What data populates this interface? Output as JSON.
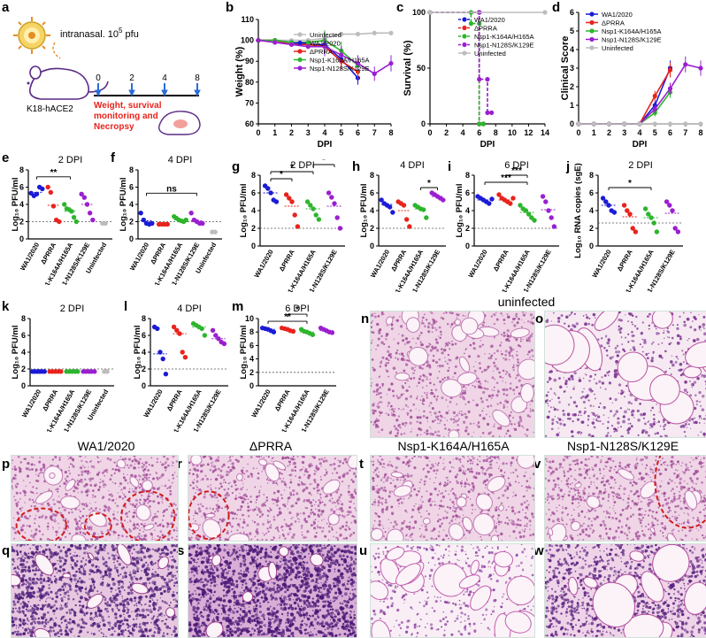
{
  "panel_a": {
    "label": "a",
    "route": "intranasal. 10",
    "route_exp": "5",
    "route_unit": " pfu",
    "mouse": "K18-hACE2",
    "timeline": [
      "0",
      "2",
      "4",
      "8"
    ],
    "monitor": "Weight, survival monitoring and Necropsy"
  },
  "legend_names": [
    "WA1/2020",
    "ΔPRRA",
    "Nsp1-K164A/H165A",
    "Nsp1-N128S/K129E",
    "Uninfected"
  ],
  "colors": {
    "WA1/2020": "#1b1bd6",
    "ΔPRRA": "#e8231c",
    "Nsp1-K164A/H165A": "#2db52d",
    "Nsp1-N128S/K129E": "#9a1fcf",
    "Uninfected": "#bdbdbd"
  },
  "chart_data": [
    {
      "id": "b",
      "type": "line",
      "xlabel": "DPI",
      "ylabel": "Weight (%)",
      "xlim": [
        0,
        8
      ],
      "ylim": [
        60,
        110
      ],
      "xticks": [
        "0",
        "1",
        "2",
        "3",
        "4",
        "5",
        "6",
        "7",
        "8"
      ],
      "yticks": [
        "60",
        "70",
        "80",
        "90",
        "100",
        "110"
      ],
      "legend": [
        "Uninfected",
        "WA1/2020",
        "ΔPRRA",
        "Nsp1-K164A/H165A",
        "Nsp1-N128S/K129E"
      ],
      "series": [
        {
          "name": "Uninfected",
          "x": [
            0,
            1,
            2,
            3,
            4,
            5,
            6,
            7,
            8
          ],
          "y": [
            100,
            100,
            100,
            100,
            101,
            103,
            103,
            103.5,
            103.5
          ]
        },
        {
          "name": "WA1/2020",
          "x": [
            0,
            1,
            2,
            3,
            4,
            5,
            6
          ],
          "y": [
            100,
            100,
            99,
            98,
            98,
            91,
            82
          ]
        },
        {
          "name": "ΔPRRA",
          "x": [
            0,
            1,
            2,
            3,
            4,
            5,
            6
          ],
          "y": [
            100,
            100,
            98,
            98,
            97,
            90,
            85
          ]
        },
        {
          "name": "Nsp1-K164A/H165A",
          "x": [
            0,
            1,
            2,
            3,
            4,
            5,
            6
          ],
          "y": [
            100,
            100,
            99,
            99,
            100,
            95,
            88
          ]
        },
        {
          "name": "Nsp1-N128S/K129E",
          "x": [
            0,
            1,
            2,
            3,
            4,
            5,
            6,
            7,
            8
          ],
          "y": [
            100,
            99,
            98,
            97,
            97,
            93,
            89,
            84,
            89
          ]
        }
      ]
    },
    {
      "id": "c",
      "type": "line",
      "xlabel": "DPI",
      "ylabel": "Survival (%)",
      "xlim": [
        0,
        14
      ],
      "ylim": [
        0,
        100
      ],
      "xticks": [
        "0",
        "2",
        "4",
        "6",
        "8",
        "10",
        "12",
        "14"
      ],
      "yticks": [
        "0",
        "50",
        "100"
      ],
      "legend": [
        "WA1/2020",
        "ΔPRRA",
        "Nsp1-K164A/H165A",
        "Nsp1-N128S/K129E",
        "Uninfected"
      ],
      "series": [
        {
          "name": "WA1/2020",
          "x": [
            0,
            6,
            6,
            6.5
          ],
          "y": [
            100,
            100,
            0,
            0
          ]
        },
        {
          "name": "ΔPRRA",
          "x": [
            0,
            6,
            6,
            6.5
          ],
          "y": [
            100,
            100,
            0,
            0
          ]
        },
        {
          "name": "Nsp1-K164A/H165A",
          "x": [
            0,
            5,
            5,
            6,
            6,
            6.5
          ],
          "y": [
            100,
            100,
            90,
            90,
            0,
            0
          ]
        },
        {
          "name": "Nsp1-N128S/K129E",
          "x": [
            0,
            6,
            6,
            7,
            7,
            7.5
          ],
          "y": [
            100,
            100,
            40,
            40,
            10,
            10
          ]
        },
        {
          "name": "Uninfected",
          "x": [
            0,
            14
          ],
          "y": [
            100,
            100
          ]
        }
      ]
    },
    {
      "id": "d",
      "type": "line",
      "xlabel": "DPI",
      "ylabel": "Clinical Score",
      "xlim": [
        0,
        8
      ],
      "ylim": [
        0,
        6
      ],
      "xticks": [
        "0",
        "1",
        "2",
        "3",
        "4",
        "5",
        "6",
        "7",
        "8"
      ],
      "yticks": [
        "0",
        "1",
        "2",
        "3",
        "4",
        "5",
        "6"
      ],
      "legend": [
        "WA1/2020",
        "ΔPRRA",
        "Nsp1-K164A/H165A",
        "Nsp1-N128S/K129E",
        "Uninfected"
      ],
      "series": [
        {
          "name": "WA1/2020",
          "x": [
            0,
            1,
            2,
            3,
            4,
            5,
            6
          ],
          "y": [
            0,
            0,
            0,
            0,
            0,
            1,
            3
          ]
        },
        {
          "name": "ΔPRRA",
          "x": [
            0,
            1,
            2,
            3,
            4,
            5,
            6
          ],
          "y": [
            0,
            0,
            0,
            0,
            0,
            1.5,
            2.9
          ]
        },
        {
          "name": "Nsp1-K164A/H165A",
          "x": [
            0,
            1,
            2,
            3,
            4,
            5,
            6
          ],
          "y": [
            0,
            0,
            0,
            0,
            0,
            0.6,
            1.7
          ]
        },
        {
          "name": "Nsp1-N128S/K129E",
          "x": [
            0,
            1,
            2,
            3,
            4,
            5,
            6,
            7,
            8
          ],
          "y": [
            0,
            0,
            0,
            0,
            0,
            0.8,
            1.9,
            3.2,
            3
          ]
        },
        {
          "name": "Uninfected",
          "x": [
            0,
            1,
            2,
            3,
            4,
            5,
            6,
            7,
            8
          ],
          "y": [
            0,
            0,
            0,
            0,
            0,
            0,
            0,
            0,
            0
          ]
        }
      ]
    },
    {
      "id": "e",
      "type": "scatter",
      "title": "2 DPI",
      "ylabel": "Log₁₀ PFU/ml",
      "ylim": [
        0,
        8
      ],
      "yticks": [
        "0",
        "2",
        "4",
        "6",
        "8"
      ],
      "categories": [
        "WA1/2020",
        "ΔPRRA",
        "Nsp1-K164A/H165A",
        "Nsp1-N128S/K129E",
        "Uninfected"
      ],
      "points": [
        [
          5.3,
          5.0,
          5.2,
          6.0,
          5.8
        ],
        [
          6.0,
          5.4,
          3.8,
          2.2,
          2.0
        ],
        [
          4.0,
          3.5,
          3.4,
          3.2,
          2.5,
          2.0
        ],
        [
          5.2,
          4.8,
          4.0,
          3.0,
          2.2
        ],
        [
          1.8,
          1.8
        ]
      ],
      "means": [
        5.4,
        3.9,
        3.2,
        4.0,
        null
      ],
      "lod": 2,
      "sig": [
        {
          "from": 0,
          "to": 2,
          "text": "**"
        }
      ]
    },
    {
      "id": "f",
      "type": "scatter",
      "title": "4 DPI",
      "ylabel": "Log₁₀ PFU/ml",
      "ylim": [
        0,
        8
      ],
      "yticks": [
        "0",
        "2",
        "4",
        "6",
        "8"
      ],
      "categories": [
        "WA1/2020",
        "ΔPRRA",
        "Nsp1-K164A/H165A",
        "Nsp1-N128S/K129E",
        "Uninfected"
      ],
      "points": [
        [
          3.0,
          2.2,
          1.8,
          1.7,
          1.8
        ],
        [
          1.7,
          1.7,
          1.7,
          1.7
        ],
        [
          2.6,
          2.4,
          2.2,
          2.1,
          2.0,
          2.2
        ],
        [
          3.0,
          2.2,
          2.0,
          1.8,
          1.8
        ],
        [
          0.8,
          0.8
        ]
      ],
      "means": [
        2.1,
        1.7,
        2.2,
        2.1,
        null
      ],
      "lod": 2,
      "sig": [
        {
          "from": 0,
          "to": 3,
          "text": "ns"
        }
      ]
    },
    {
      "id": "g",
      "type": "scatter",
      "title": "2 DPI",
      "ylabel": "Log₁₀ PFU/ml",
      "ylim": [
        0,
        8
      ],
      "yticks": [
        "0",
        "2",
        "4",
        "6",
        "8"
      ],
      "categories": [
        "WA1/2020",
        "ΔPRRA",
        "Nsp1-K164A/H165A",
        "Nsp1-N128S/K129E"
      ],
      "points": [
        [
          6.8,
          6.5,
          6.0,
          5.2,
          5.0
        ],
        [
          5.8,
          5.4,
          5.0,
          3.5,
          2.2
        ],
        [
          5.0,
          4.6,
          4.2,
          3.5,
          3.0
        ],
        [
          6.0,
          5.5,
          4.8,
          3.2,
          2.0
        ]
      ],
      "means": [
        6.0,
        4.5,
        4.2,
        4.5
      ],
      "lod": 2,
      "sig": [
        {
          "from": 0,
          "to": 1,
          "text": "*"
        },
        {
          "from": 0,
          "to": 2,
          "text": "*"
        },
        {
          "from": 2,
          "to": 3,
          "text": "*"
        }
      ]
    },
    {
      "id": "h",
      "type": "scatter",
      "title": "4 DPI",
      "ylabel": "Log₁₀ PFU/ml",
      "ylim": [
        0,
        8
      ],
      "yticks": [
        "0",
        "2",
        "4",
        "6",
        "8"
      ],
      "categories": [
        "WA1/2020",
        "ΔPRRA",
        "Nsp1-K164A/H165A",
        "Nsp1-N128S/K129E"
      ],
      "points": [
        [
          5.2,
          4.8,
          4.6,
          4.4,
          3.8
        ],
        [
          5.0,
          4.8,
          4.6,
          3.0,
          2.2
        ],
        [
          4.6,
          4.4,
          4.2,
          4.1,
          3.2
        ],
        [
          6.0,
          5.8,
          5.6,
          5.4,
          5.2
        ]
      ],
      "means": [
        4.7,
        4.0,
        4.2,
        5.6
      ],
      "lod": 2,
      "sig": [
        {
          "from": 2,
          "to": 3,
          "text": "*"
        }
      ]
    },
    {
      "id": "i",
      "type": "scatter",
      "title": "6 DPI",
      "ylabel": "Log₁₀ PFU/ml",
      "ylim": [
        0,
        8
      ],
      "yticks": [
        "0",
        "2",
        "4",
        "6",
        "8"
      ],
      "categories": [
        "WA1/2020",
        "ΔPRRA",
        "Nsp1-K164A/H165A",
        "Nsp1-N128S/K129E"
      ],
      "points": [
        [
          5.6,
          5.4,
          5.2,
          5.0,
          4.8,
          5.3
        ],
        [
          5.8,
          5.4,
          5.2,
          5.0,
          4.8,
          5.4
        ],
        [
          4.6,
          4.2,
          4.0,
          3.6,
          3.2,
          2.9
        ],
        [
          5.6,
          5.0,
          4.0,
          3.2,
          2.2
        ]
      ],
      "means": [
        5.2,
        5.2,
        3.8,
        4.1
      ],
      "lod": 2,
      "sig": [
        {
          "from": 0,
          "to": 2,
          "text": "***"
        },
        {
          "from": 1,
          "to": 2,
          "text": "***"
        }
      ]
    },
    {
      "id": "j",
      "type": "scatter",
      "title": "2 DPI",
      "ylabel": "Log₁₀ RNA copies (sgE)",
      "ylim": [
        0,
        8
      ],
      "yticks": [
        "0",
        "2",
        "4",
        "6",
        "8"
      ],
      "categories": [
        "WA1/2020",
        "ΔPRRA",
        "Nsp1-K164A/H165A",
        "Nsp1-N128S/K129E"
      ],
      "points": [
        [
          5.4,
          5.0,
          4.6,
          4.0,
          3.8
        ],
        [
          4.6,
          4.0,
          3.6,
          2.0,
          1.6
        ],
        [
          4.2,
          3.6,
          3.2,
          2.6,
          1.6
        ],
        [
          5.0,
          4.6,
          4.0,
          2.0,
          1.6
        ]
      ],
      "means": [
        4.6,
        3.3,
        3.2,
        3.7
      ],
      "lod": 2.6,
      "sig": [
        {
          "from": 0,
          "to": 2,
          "text": "*"
        }
      ]
    },
    {
      "id": "k",
      "type": "scatter",
      "title": "2 DPI",
      "ylabel": "Log₁₀ PFU/ml",
      "ylim": [
        0,
        8
      ],
      "yticks": [
        "0",
        "2",
        "4",
        "6",
        "8"
      ],
      "categories": [
        "WA1/2020",
        "ΔPRRA",
        "Nsp1-K164A/H165A",
        "Nsp1-N128S/K129E",
        "Uninfected"
      ],
      "points": [
        [
          1.7,
          1.7,
          1.7,
          1.7,
          1.7,
          1.7
        ],
        [
          1.7,
          1.7,
          1.7,
          1.7,
          1.7
        ],
        [
          1.7,
          1.7,
          1.7,
          1.7,
          1.7
        ],
        [
          1.7,
          1.7,
          1.7,
          1.7,
          1.7
        ],
        [
          1.7,
          1.7
        ]
      ],
      "means": [
        1.7,
        1.7,
        1.7,
        1.7,
        null
      ],
      "lod": 2,
      "sig": []
    },
    {
      "id": "l",
      "type": "scatter",
      "title": "4 DPI",
      "ylabel": "Log₁₀ PFU/ml",
      "ylim": [
        0,
        8
      ],
      "yticks": [
        "0",
        "2",
        "4",
        "6",
        "8"
      ],
      "categories": [
        "WA1/2020",
        "ΔPRRA",
        "Nsp1-K164A/H165A",
        "Nsp1-N128S/K129E"
      ],
      "points": [
        [
          7.0,
          6.8,
          4.0,
          3.2,
          1.4
        ],
        [
          7.0,
          6.6,
          6.2,
          4.0,
          3.4
        ],
        [
          7.4,
          7.2,
          7.0,
          6.8,
          6.0
        ],
        [
          6.6,
          6.0,
          5.6,
          5.2,
          5.0
        ]
      ],
      "means": [
        3.8,
        6.2,
        7.0,
        5.6
      ],
      "lod": 2,
      "sig": []
    },
    {
      "id": "m",
      "type": "scatter",
      "title": "6 DPI",
      "ylabel": "Log₁₀ PFU/ml",
      "ylim": [
        0,
        10
      ],
      "yticks": [
        "0",
        "2",
        "4",
        "6",
        "8",
        "10"
      ],
      "categories": [
        "WA1/2020",
        "ΔPRRA",
        "Nsp1-K164A/H165A",
        "Nsp1-N128S/K129E"
      ],
      "points": [
        [
          8.6,
          8.5,
          8.4,
          8.2,
          8.0
        ],
        [
          8.6,
          8.5,
          8.4,
          8.2,
          8.1
        ],
        [
          8.4,
          8.1,
          8.0,
          7.8,
          7.6
        ],
        [
          8.6,
          8.4,
          8.2,
          8.0,
          7.9
        ]
      ],
      "means": [
        8.4,
        8.4,
        8.0,
        8.2
      ],
      "lod": 2,
      "sig": [
        {
          "from": 0,
          "to": 2,
          "text": "**"
        },
        {
          "from": 1,
          "to": 2,
          "text": "*"
        }
      ]
    }
  ],
  "histology": {
    "uninfected_title": "uninfected",
    "titles": [
      "WA1/2020",
      "ΔPRRA",
      "Nsp1-K164A/H165A",
      "Nsp1-N128S/K129E"
    ],
    "labels": {
      "n": "n",
      "o": "o",
      "p": "p",
      "q": "q",
      "r": "r",
      "s": "s",
      "t": "t",
      "u": "u",
      "v": "v",
      "w": "w"
    }
  }
}
